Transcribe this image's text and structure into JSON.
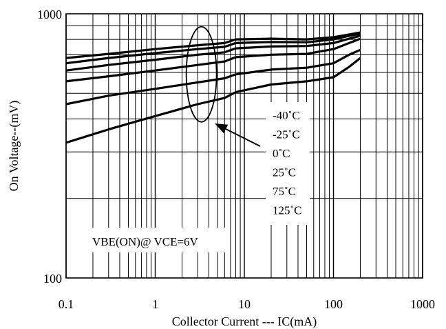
{
  "chart_data": {
    "type": "line",
    "xlabel": "Collector Current --- IC(mA)",
    "ylabel": "On Voltage--(mV)",
    "x_scale": "log",
    "y_scale": "log",
    "xlim": [
      0.1,
      1000
    ],
    "ylim": [
      100,
      1000
    ],
    "grid": true,
    "x_ticks": [
      {
        "value": 0.1,
        "label": "0.1"
      },
      {
        "value": 1,
        "label": "1"
      },
      {
        "value": 10,
        "label": "10"
      },
      {
        "value": 100,
        "label": "100"
      },
      {
        "value": 1000,
        "label": "1000"
      }
    ],
    "y_ticks": [
      {
        "value": 100,
        "label": "100"
      },
      {
        "value": 1000,
        "label": "1000"
      }
    ],
    "annotation_condition": "VBE(ON)@ VCE=6V",
    "legend_labels": [
      "-40˚C",
      "-25˚C",
      "0˚C",
      "25˚C",
      "75˚C",
      "125˚C"
    ],
    "series": [
      {
        "name": "-40˚C",
        "points": [
          [
            0.1,
            680
          ],
          [
            0.3,
            705
          ],
          [
            1,
            735
          ],
          [
            3,
            760
          ],
          [
            6,
            775
          ],
          [
            8,
            800
          ],
          [
            20,
            805
          ],
          [
            50,
            800
          ],
          [
            100,
            815
          ],
          [
            150,
            835
          ],
          [
            200,
            850
          ]
        ]
      },
      {
        "name": "-25˚C",
        "points": [
          [
            0.1,
            650
          ],
          [
            0.3,
            680
          ],
          [
            1,
            710
          ],
          [
            3,
            735
          ],
          [
            6,
            750
          ],
          [
            8,
            775
          ],
          [
            20,
            782
          ],
          [
            50,
            780
          ],
          [
            100,
            800
          ],
          [
            150,
            825
          ],
          [
            200,
            840
          ]
        ]
      },
      {
        "name": "0˚C",
        "points": [
          [
            0.1,
            610
          ],
          [
            0.3,
            640
          ],
          [
            1,
            670
          ],
          [
            3,
            700
          ],
          [
            6,
            715
          ],
          [
            8,
            740
          ],
          [
            20,
            752
          ],
          [
            50,
            755
          ],
          [
            100,
            775
          ],
          [
            150,
            805
          ],
          [
            200,
            825
          ]
        ]
      },
      {
        "name": "25˚C",
        "points": [
          [
            0.1,
            555
          ],
          [
            0.3,
            580
          ],
          [
            1,
            610
          ],
          [
            3,
            640
          ],
          [
            6,
            660
          ],
          [
            8,
            685
          ],
          [
            20,
            700
          ],
          [
            50,
            705
          ],
          [
            100,
            735
          ],
          [
            150,
            775
          ],
          [
            200,
            805
          ]
        ]
      },
      {
        "name": "75˚C",
        "points": [
          [
            0.1,
            455
          ],
          [
            0.3,
            490
          ],
          [
            1,
            520
          ],
          [
            3,
            550
          ],
          [
            6,
            570
          ],
          [
            8,
            590
          ],
          [
            20,
            615
          ],
          [
            50,
            625
          ],
          [
            100,
            650
          ],
          [
            150,
            700
          ],
          [
            200,
            730
          ]
        ]
      },
      {
        "name": "125˚C",
        "points": [
          [
            0.1,
            325
          ],
          [
            0.3,
            365
          ],
          [
            1,
            410
          ],
          [
            3,
            455
          ],
          [
            6,
            480
          ],
          [
            8,
            505
          ],
          [
            20,
            540
          ],
          [
            50,
            555
          ],
          [
            100,
            575
          ],
          [
            150,
            630
          ],
          [
            200,
            680
          ]
        ]
      }
    ]
  }
}
